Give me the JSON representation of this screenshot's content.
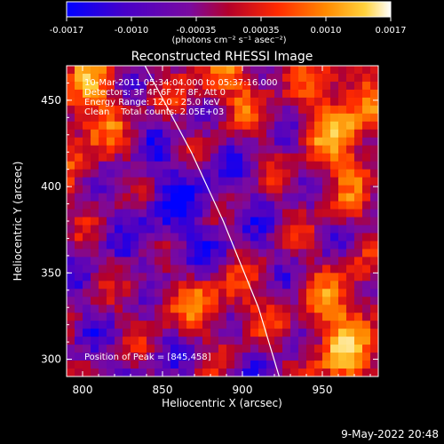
{
  "colorbar": {
    "ticks": [
      "-0.0017",
      "-0.0010",
      "-0.00035",
      "0.00035",
      "0.0010",
      "0.0017"
    ],
    "unit_label": "(photons cm⁻² s⁻¹ asec⁻²)"
  },
  "colors": {
    "background": "#000000",
    "limb": "#ffffff",
    "colormap": [
      "#0000ff",
      "#4800c8",
      "#7a0aa0",
      "#b4002a",
      "#ff2a00",
      "#ff8a00",
      "#ffd23c",
      "#ffffff"
    ]
  },
  "info": {
    "time_range": "10-Mar-2011 05:34:04.000 to 05:37:16.000",
    "detectors": "Detectors: 3F 4F 6F 7F 8F, Att 0",
    "energy_range": "Energy Range: 12.0 - 25.0 keV",
    "clean_counts": "Clean    Total counts: 2.05E+03",
    "peak": "Position of Peak = [845,458]"
  },
  "footer": {
    "date": "9-May-2022 20:48"
  },
  "chart_data": {
    "type": "heatmap",
    "title": "Reconstructed RHESSI Image",
    "xlabel": "Heliocentric X (arcsec)",
    "ylabel": "Heliocentric Y (arcsec)",
    "xlim": [
      790,
      985
    ],
    "ylim": [
      290,
      470
    ],
    "xticks": [
      800,
      850,
      900,
      950
    ],
    "yticks": [
      300,
      350,
      400,
      450
    ],
    "colorbar_range": [
      -0.0017,
      0.0017
    ],
    "peak_position": [
      845,
      458
    ],
    "limb_line": [
      [
        839,
        470
      ],
      [
        868,
        420
      ],
      [
        888,
        380
      ],
      [
        910,
        330
      ],
      [
        923,
        290
      ]
    ]
  }
}
